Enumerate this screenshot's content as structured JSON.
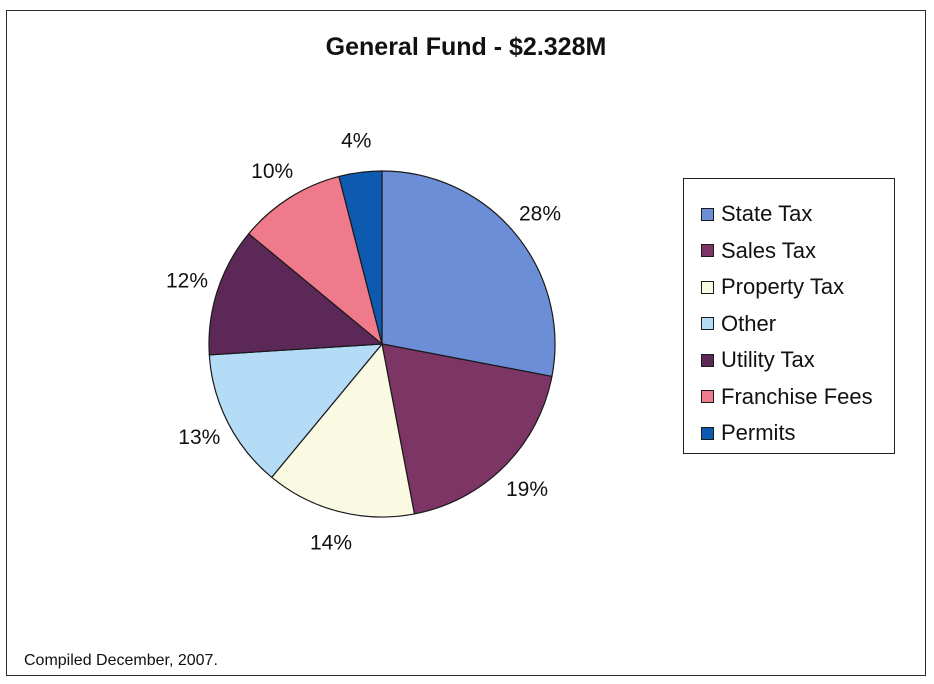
{
  "chart_data": {
    "type": "pie",
    "title": "General Fund - $2.328M",
    "slices": [
      {
        "name": "State Tax",
        "value": 28,
        "label": "28%",
        "color": "#6c8ed6"
      },
      {
        "name": "Sales Tax",
        "value": 19,
        "label": "19%",
        "color": "#7d3566"
      },
      {
        "name": "Property Tax",
        "value": 14,
        "label": "14%",
        "color": "#fafae3"
      },
      {
        "name": "Other",
        "value": 13,
        "label": "13%",
        "color": "#b5dcf6"
      },
      {
        "name": "Utility Tax",
        "value": 12,
        "label": "12%",
        "color": "#5c2858"
      },
      {
        "name": "Franchise Fees",
        "value": 10,
        "label": "10%",
        "color": "#ef7a8c"
      },
      {
        "name": "Permits",
        "value": 4,
        "label": "4%",
        "color": "#0d5ab0"
      }
    ],
    "legend_position": "right",
    "start_angle": "12 o'clock",
    "direction": "clockwise"
  },
  "footnote": "Compiled December, 2007."
}
